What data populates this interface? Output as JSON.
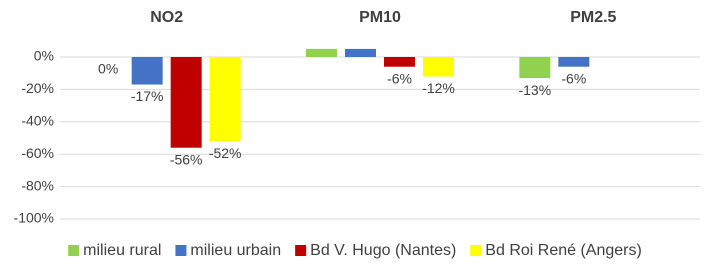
{
  "chart_data": {
    "type": "bar",
    "categories": [
      "NO2",
      "PM10",
      "PM2.5"
    ],
    "series": [
      {
        "name": "milieu rural",
        "color": "#92d050",
        "values": [
          0,
          5,
          -13
        ],
        "value_labels": [
          "0%",
          null,
          "-13%"
        ]
      },
      {
        "name": "milieu urbain",
        "color": "#4472c4",
        "values": [
          -17,
          5,
          -6
        ],
        "value_labels": [
          "-17%",
          null,
          "-6%"
        ]
      },
      {
        "name": "Bd V. Hugo (Nantes)",
        "color": "#c00000",
        "values": [
          -56,
          -6,
          null
        ],
        "value_labels": [
          "-56%",
          "-6%",
          null
        ]
      },
      {
        "name": "Bd Roi René (Angers)",
        "color": "#ffff00",
        "values": [
          -52,
          -12,
          null
        ],
        "value_labels": [
          "-52%",
          "-12%",
          null
        ]
      }
    ],
    "ylim": [
      -100,
      20
    ],
    "yticks": [
      {
        "value": 0,
        "label": "0%"
      },
      {
        "value": -20,
        "label": "-20%"
      },
      {
        "value": -40,
        "label": "-40%"
      },
      {
        "value": -60,
        "label": "-60%"
      },
      {
        "value": -80,
        "label": "-80%"
      },
      {
        "value": -100,
        "label": "-100%"
      }
    ],
    "grid": true,
    "legend": "bottom"
  }
}
